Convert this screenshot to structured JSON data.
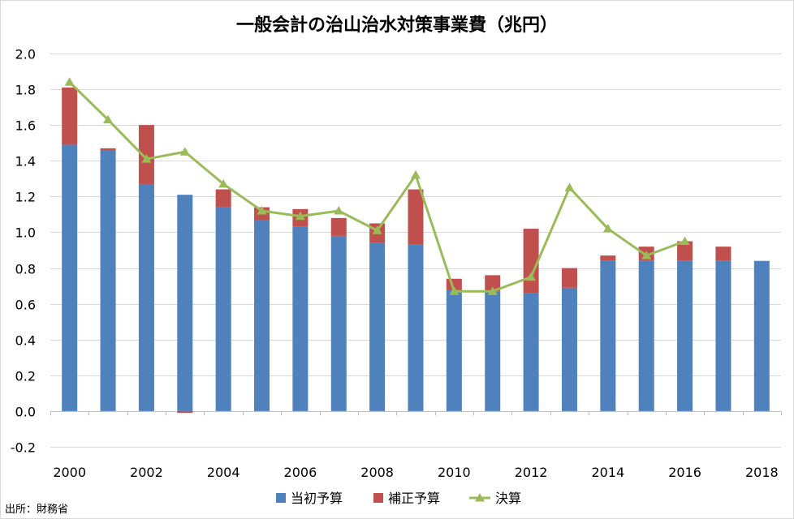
{
  "chart_data": {
    "type": "bar",
    "title": "一般会計の治山治水対策事業費（兆円）",
    "source": "出所：財務省",
    "categories": [
      "2000",
      "2001",
      "2002",
      "2003",
      "2004",
      "2005",
      "2006",
      "2007",
      "2008",
      "2009",
      "2010",
      "2011",
      "2012",
      "2013",
      "2014",
      "2015",
      "2016",
      "2017",
      "2018"
    ],
    "x_tick_labels": [
      "2000",
      "2002",
      "2004",
      "2006",
      "2008",
      "2010",
      "2012",
      "2014",
      "2016",
      "2018"
    ],
    "y_tick_labels": [
      "2.0",
      "1.8",
      "1.6",
      "1.4",
      "1.2",
      "1.0",
      "0.8",
      "0.6",
      "0.4",
      "0.2",
      "0.0",
      "-0.2"
    ],
    "ylim": [
      -0.2,
      2.0
    ],
    "y_ticks": [
      2.0,
      1.8,
      1.6,
      1.4,
      1.2,
      1.0,
      0.8,
      0.6,
      0.4,
      0.2,
      0.0,
      -0.2
    ],
    "grid": true,
    "legend_position": "bottom",
    "series": [
      {
        "name": "当初予算",
        "kind": "bar",
        "color": "#4f81bd",
        "values": [
          1.49,
          1.46,
          1.27,
          1.21,
          1.14,
          1.07,
          1.03,
          0.98,
          0.94,
          0.93,
          0.68,
          0.67,
          0.66,
          0.69,
          0.84,
          0.84,
          0.84,
          0.84,
          0.84
        ]
      },
      {
        "name": "補正予算",
        "kind": "bar",
        "color": "#c0504d",
        "values": [
          0.32,
          0.01,
          0.33,
          -0.01,
          0.1,
          0.07,
          0.1,
          0.1,
          0.11,
          0.31,
          0.06,
          0.09,
          0.36,
          0.11,
          0.03,
          0.08,
          0.11,
          0.08,
          0.0
        ]
      },
      {
        "name": "決算",
        "kind": "line",
        "color": "#9bbb59",
        "marker": "triangle",
        "values": [
          1.84,
          1.63,
          1.41,
          1.45,
          1.27,
          1.12,
          1.09,
          1.12,
          1.01,
          1.32,
          0.67,
          0.67,
          0.75,
          1.25,
          1.02,
          0.87,
          0.95,
          null,
          null
        ]
      }
    ]
  }
}
